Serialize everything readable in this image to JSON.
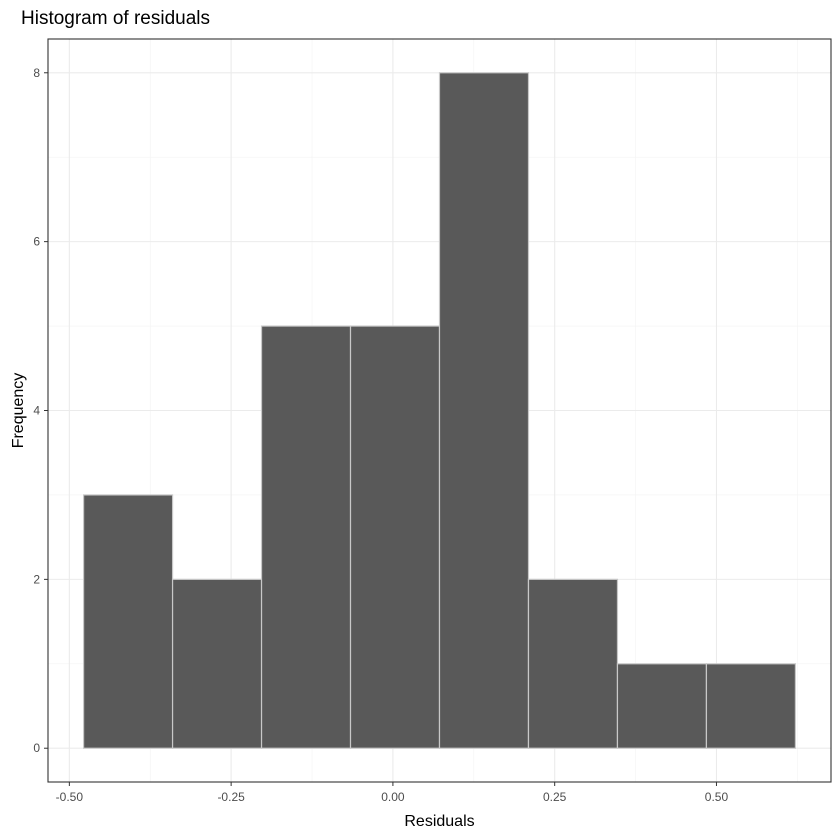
{
  "chart_data": {
    "type": "bar",
    "title": "Histogram of residuals",
    "xlabel": "Residuals",
    "ylabel": "Frequency",
    "bins": [
      {
        "x0": -0.478,
        "x1": -0.3405,
        "count": 3
      },
      {
        "x0": -0.3405,
        "x1": -0.203,
        "count": 2
      },
      {
        "x0": -0.203,
        "x1": -0.0655,
        "count": 5
      },
      {
        "x0": -0.0655,
        "x1": 0.072,
        "count": 5
      },
      {
        "x0": 0.072,
        "x1": 0.2095,
        "count": 8
      },
      {
        "x0": 0.2095,
        "x1": 0.347,
        "count": 2
      },
      {
        "x0": 0.347,
        "x1": 0.4845,
        "count": 1
      },
      {
        "x0": 0.4845,
        "x1": 0.622,
        "count": 1
      }
    ],
    "xticks": [
      {
        "value": -0.5,
        "label": "-0.50"
      },
      {
        "value": -0.25,
        "label": "-0.25"
      },
      {
        "value": 0.0,
        "label": "0.00"
      },
      {
        "value": 0.25,
        "label": "0.25"
      },
      {
        "value": 0.5,
        "label": "0.50"
      }
    ],
    "yticks": [
      {
        "value": 0,
        "label": "0"
      },
      {
        "value": 2,
        "label": "2"
      },
      {
        "value": 4,
        "label": "4"
      },
      {
        "value": 6,
        "label": "6"
      },
      {
        "value": 8,
        "label": "8"
      }
    ],
    "xlim": [
      -0.533,
      0.677
    ],
    "ylim": [
      -0.4,
      8.4
    ],
    "grid": true,
    "colors": {
      "bar_fill": "#595959",
      "bar_outline": "#c8c8c8"
    }
  }
}
